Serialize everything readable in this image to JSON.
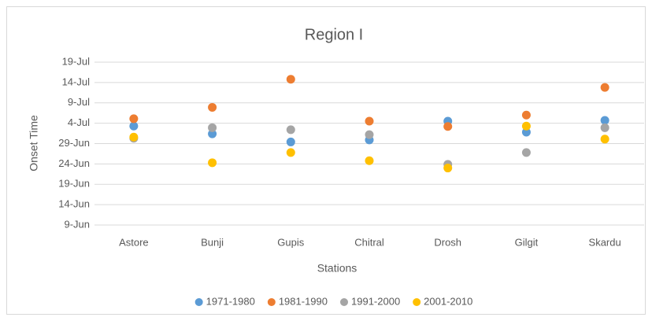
{
  "chart_data": {
    "type": "scatter",
    "title": "Region I",
    "x_label": "Stations",
    "y_label": "Onset Time",
    "categories": [
      "Astore",
      "Bunji",
      "Gupis",
      "Chitral",
      "Drosh",
      "Gilgit",
      "Skardu"
    ],
    "series": [
      {
        "name": "1971-1980",
        "color": "#5b9bd5",
        "values": [
          184.3,
          182.4,
          180.4,
          180.9,
          185.5,
          182.8,
          185.7
        ]
      },
      {
        "name": "1981-1990",
        "color": "#ed7d31",
        "values": [
          186.1,
          188.9,
          195.8,
          185.5,
          184.2,
          187.0,
          193.8
        ]
      },
      {
        "name": "1991-2000",
        "color": "#a5a5a5",
        "values": [
          181.3,
          183.9,
          183.4,
          182.2,
          174.9,
          177.8,
          183.9
        ]
      },
      {
        "name": "2001-2010",
        "color": "#ffc000",
        "values": [
          181.6,
          175.3,
          177.8,
          175.8,
          174.0,
          184.3,
          181.1
        ]
      }
    ],
    "ylim": [
      160,
      200
    ],
    "yticks": [
      {
        "value": 160,
        "label": "9-Jun"
      },
      {
        "value": 165,
        "label": "14-Jun"
      },
      {
        "value": 170,
        "label": "19-Jun"
      },
      {
        "value": 175,
        "label": "24-Jun"
      },
      {
        "value": 180,
        "label": "29-Jun"
      },
      {
        "value": 185,
        "label": "4-Jul"
      },
      {
        "value": 190,
        "label": "9-Jul"
      },
      {
        "value": 195,
        "label": "14-Jul"
      },
      {
        "value": 200,
        "label": "19-Jul"
      }
    ],
    "grid": true,
    "legend": "bottom"
  }
}
